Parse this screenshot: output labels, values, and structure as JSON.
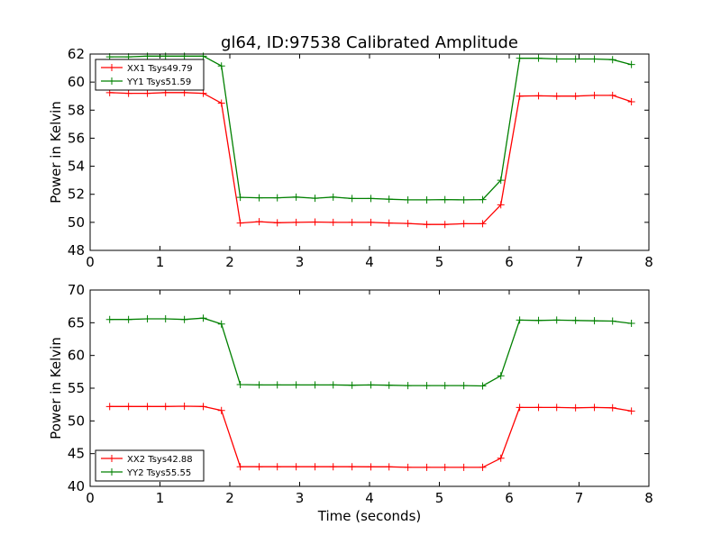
{
  "figure": {
    "title": "gl64, ID:97538 Calibrated Amplitude",
    "xlabel": "Time (seconds)"
  },
  "chart_data": [
    {
      "type": "line",
      "title": "gl64, ID:97538 Calibrated Amplitude",
      "xlabel": "",
      "ylabel": "Power in Kelvin",
      "xlim": [
        0,
        8
      ],
      "ylim": [
        48,
        62
      ],
      "xticks": [
        0,
        1,
        2,
        3,
        4,
        5,
        6,
        7,
        8
      ],
      "yticks": [
        48,
        50,
        52,
        54,
        56,
        58,
        60,
        62
      ],
      "grid": false,
      "legend_position": "top-left",
      "x": [
        0.28,
        0.55,
        0.82,
        1.08,
        1.35,
        1.62,
        1.88,
        2.15,
        2.42,
        2.68,
        2.95,
        3.22,
        3.48,
        3.75,
        4.02,
        4.28,
        4.55,
        4.82,
        5.08,
        5.35,
        5.62,
        5.88,
        6.15,
        6.42,
        6.68,
        6.95,
        7.22,
        7.48,
        7.75
      ],
      "series": [
        {
          "name": "XX1 Tsys49.79",
          "color": "#ff0000",
          "values": [
            59.25,
            59.2,
            59.2,
            59.25,
            59.25,
            59.2,
            58.5,
            49.95,
            50.05,
            49.97,
            50.0,
            50.02,
            50.0,
            50.0,
            50.0,
            49.95,
            49.92,
            49.85,
            49.85,
            49.9,
            49.9,
            51.25,
            59.0,
            59.02,
            59.0,
            59.0,
            59.05,
            59.05,
            58.6
          ]
        },
        {
          "name": "YY1 Tsys51.59",
          "color": "#008000",
          "values": [
            61.8,
            61.8,
            61.85,
            61.85,
            61.85,
            61.85,
            61.15,
            51.78,
            51.75,
            51.75,
            51.8,
            51.72,
            51.8,
            51.7,
            51.7,
            51.65,
            51.6,
            51.6,
            51.62,
            51.6,
            51.62,
            53.0,
            61.7,
            61.7,
            61.65,
            61.65,
            61.65,
            61.6,
            61.25
          ]
        }
      ]
    },
    {
      "type": "line",
      "title": "",
      "xlabel": "Time (seconds)",
      "ylabel": "Power in Kelvin",
      "xlim": [
        0,
        8
      ],
      "ylim": [
        40,
        70
      ],
      "xticks": [
        0,
        1,
        2,
        3,
        4,
        5,
        6,
        7,
        8
      ],
      "yticks": [
        40,
        45,
        50,
        55,
        60,
        65,
        70
      ],
      "grid": false,
      "legend_position": "bottom-left",
      "x": [
        0.28,
        0.55,
        0.82,
        1.08,
        1.35,
        1.62,
        1.88,
        2.15,
        2.42,
        2.68,
        2.95,
        3.22,
        3.48,
        3.75,
        4.02,
        4.28,
        4.55,
        4.82,
        5.08,
        5.35,
        5.62,
        5.88,
        6.15,
        6.42,
        6.68,
        6.95,
        7.22,
        7.48,
        7.75
      ],
      "series": [
        {
          "name": "XX2 Tsys42.88",
          "color": "#ff0000",
          "values": [
            52.2,
            52.2,
            52.2,
            52.2,
            52.25,
            52.2,
            51.6,
            43.0,
            43.0,
            43.0,
            43.0,
            43.0,
            43.0,
            43.0,
            42.98,
            42.98,
            42.9,
            42.9,
            42.9,
            42.9,
            42.9,
            44.3,
            52.05,
            52.05,
            52.05,
            52.0,
            52.05,
            52.0,
            51.5
          ]
        },
        {
          "name": "YY2 Tsys55.55",
          "color": "#008000",
          "values": [
            65.5,
            65.5,
            65.6,
            65.6,
            65.5,
            65.7,
            64.8,
            55.55,
            55.5,
            55.5,
            55.5,
            55.5,
            55.5,
            55.45,
            55.5,
            55.45,
            55.4,
            55.4,
            55.4,
            55.4,
            55.35,
            56.9,
            65.4,
            65.35,
            65.4,
            65.35,
            65.3,
            65.25,
            64.9
          ]
        }
      ]
    }
  ]
}
